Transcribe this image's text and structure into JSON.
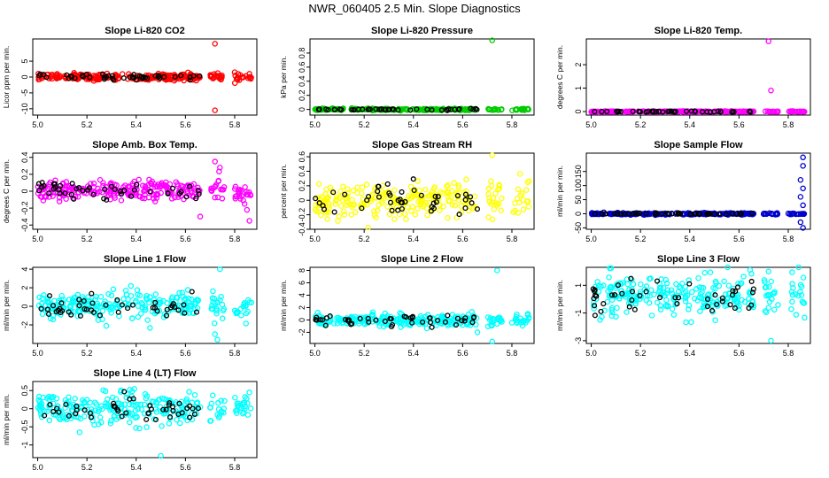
{
  "figure_title": "NWR_060405  2.5 Min. Slope Diagnostics",
  "chart_data": [
    {
      "type": "scatter",
      "title": "Slope Li-820 CO2",
      "ylabel": "Licor ppm per min.",
      "color": "#ff0000",
      "xlim": [
        4.98,
        5.89
      ],
      "ylim": [
        -12,
        12
      ],
      "yticks": [
        -10,
        -5,
        0,
        5
      ],
      "xticks": [
        5.0,
        5.2,
        5.4,
        5.6,
        5.8
      ],
      "base": 0,
      "noise": 0.5,
      "outliers": [
        {
          "x": 5.72,
          "y": 10.5
        },
        {
          "x": 5.72,
          "y": -10.5
        },
        {
          "x": 5.86,
          "y": 1.0
        }
      ]
    },
    {
      "type": "scatter",
      "title": "Slope Li-820 Pressure",
      "ylabel": "kPa per min.",
      "color": "#00cc00",
      "xlim": [
        4.98,
        5.89
      ],
      "ylim": [
        -0.08,
        1.0
      ],
      "yticks": [
        0.0,
        0.2,
        0.4,
        0.6,
        0.8
      ],
      "xticks": [
        5.0,
        5.2,
        5.4,
        5.6,
        5.8
      ],
      "base": 0,
      "noise": 0.006,
      "outliers": [
        {
          "x": 5.72,
          "y": 0.98
        }
      ]
    },
    {
      "type": "scatter",
      "title": "Slope Li-820 Temp.",
      "ylabel": "degrees C per min.",
      "color": "#ff00ff",
      "xlim": [
        4.98,
        5.89
      ],
      "ylim": [
        -0.15,
        3.1
      ],
      "yticks": [
        0.0,
        1.0,
        2.0
      ],
      "xticks": [
        5.0,
        5.2,
        5.4,
        5.6,
        5.8
      ],
      "base": 0,
      "noise": 0.01,
      "outliers": [
        {
          "x": 5.72,
          "y": 3.0
        },
        {
          "x": 5.73,
          "y": 0.9
        }
      ]
    },
    {
      "type": "scatter",
      "title": "Slope Amb. Box Temp.",
      "ylabel": "degrees C per min.",
      "color": "#ff00ff",
      "xlim": [
        4.98,
        5.89
      ],
      "ylim": [
        -0.45,
        0.45
      ],
      "yticks": [
        -0.4,
        -0.2,
        0.0,
        0.2,
        0.4
      ],
      "xticks": [
        5.0,
        5.2,
        5.4,
        5.6,
        5.8
      ],
      "base": 0.0,
      "noise": 0.06,
      "outliers": [
        {
          "x": 5.72,
          "y": 0.35
        },
        {
          "x": 5.74,
          "y": 0.28
        },
        {
          "x": 5.86,
          "y": -0.35
        },
        {
          "x": 5.85,
          "y": -0.22
        },
        {
          "x": 5.84,
          "y": -0.15
        },
        {
          "x": 5.66,
          "y": -0.3
        }
      ]
    },
    {
      "type": "scatter",
      "title": "Slope Gas Stream RH",
      "ylabel": "percent per min.",
      "color": "#ffff00",
      "xlim": [
        4.98,
        5.89
      ],
      "ylim": [
        -0.4,
        0.65
      ],
      "yticks": [
        -0.4,
        -0.2,
        0.0,
        0.2,
        0.4,
        0.6
      ],
      "xticks": [
        5.0,
        5.2,
        5.4,
        5.6,
        5.8
      ],
      "base": 0,
      "noise": 0.12,
      "outliers": [
        {
          "x": 5.72,
          "y": 0.62
        }
      ]
    },
    {
      "type": "scatter",
      "title": "Slope Sample Flow",
      "ylabel": "ml/min per min.",
      "color": "#0000cc",
      "xlim": [
        4.98,
        5.89
      ],
      "ylim": [
        -55,
        215
      ],
      "yticks": [
        -50,
        0,
        50,
        100,
        150
      ],
      "xticks": [
        5.0,
        5.2,
        5.4,
        5.6,
        5.8
      ],
      "base": 0,
      "noise": 1.5,
      "outliers": [
        {
          "x": 5.86,
          "y": 200
        },
        {
          "x": 5.86,
          "y": 170
        },
        {
          "x": 5.85,
          "y": 120
        },
        {
          "x": 5.86,
          "y": 90
        },
        {
          "x": 5.85,
          "y": 60
        },
        {
          "x": 5.86,
          "y": 30
        },
        {
          "x": 5.85,
          "y": -30
        },
        {
          "x": 5.86,
          "y": -50
        }
      ]
    },
    {
      "type": "scatter",
      "title": "Slope Line 1 Flow",
      "ylabel": "ml/min per min.",
      "color": "#00ffff",
      "xlim": [
        4.98,
        5.89
      ],
      "ylim": [
        -4,
        4.2
      ],
      "yticks": [
        -2,
        0,
        2,
        4
      ],
      "xticks": [
        5.0,
        5.2,
        5.4,
        5.6,
        5.8
      ],
      "base": 0,
      "noise": 0.7,
      "outliers": [
        {
          "x": 5.74,
          "y": 4.0
        },
        {
          "x": 5.72,
          "y": -3.0
        },
        {
          "x": 5.73,
          "y": -3.6
        }
      ]
    },
    {
      "type": "scatter",
      "title": "Slope Line 2 Flow",
      "ylabel": "ml/min per min.",
      "color": "#00ffff",
      "xlim": [
        4.98,
        5.89
      ],
      "ylim": [
        -3.8,
        8.5
      ],
      "yticks": [
        -2,
        0,
        2,
        4,
        6,
        8
      ],
      "xticks": [
        5.0,
        5.2,
        5.4,
        5.6,
        5.8
      ],
      "base": 0,
      "noise": 0.5,
      "outliers": [
        {
          "x": 5.74,
          "y": 8.0
        },
        {
          "x": 5.72,
          "y": -3.5
        },
        {
          "x": 5.66,
          "y": -2.0
        }
      ]
    },
    {
      "type": "scatter",
      "title": "Slope Line 3 Flow",
      "ylabel": "ml/min per min.",
      "color": "#00ffff",
      "xlim": [
        4.98,
        5.89
      ],
      "ylim": [
        -3.2,
        2.3
      ],
      "yticks": [
        -3,
        -1,
        1
      ],
      "xticks": [
        5.0,
        5.2,
        5.4,
        5.6,
        5.8
      ],
      "base": 0.2,
      "noise": 0.7,
      "outliers": [
        {
          "x": 5.72,
          "y": 2.0
        },
        {
          "x": 5.73,
          "y": -3.0
        }
      ]
    },
    {
      "type": "scatter",
      "title": "Slope Line 4 (LT) Flow",
      "ylabel": "ml/min per min.",
      "color": "#00ffff",
      "xlim": [
        4.98,
        5.89
      ],
      "ylim": [
        -1.35,
        0.75
      ],
      "yticks": [
        -1.0,
        -0.5,
        0.0,
        0.5
      ],
      "xticks": [
        5.0,
        5.2,
        5.4,
        5.6,
        5.8
      ],
      "base": 0,
      "noise": 0.22,
      "outliers": [
        {
          "x": 5.5,
          "y": -1.3
        },
        {
          "x": 5.17,
          "y": -0.65
        }
      ]
    }
  ]
}
